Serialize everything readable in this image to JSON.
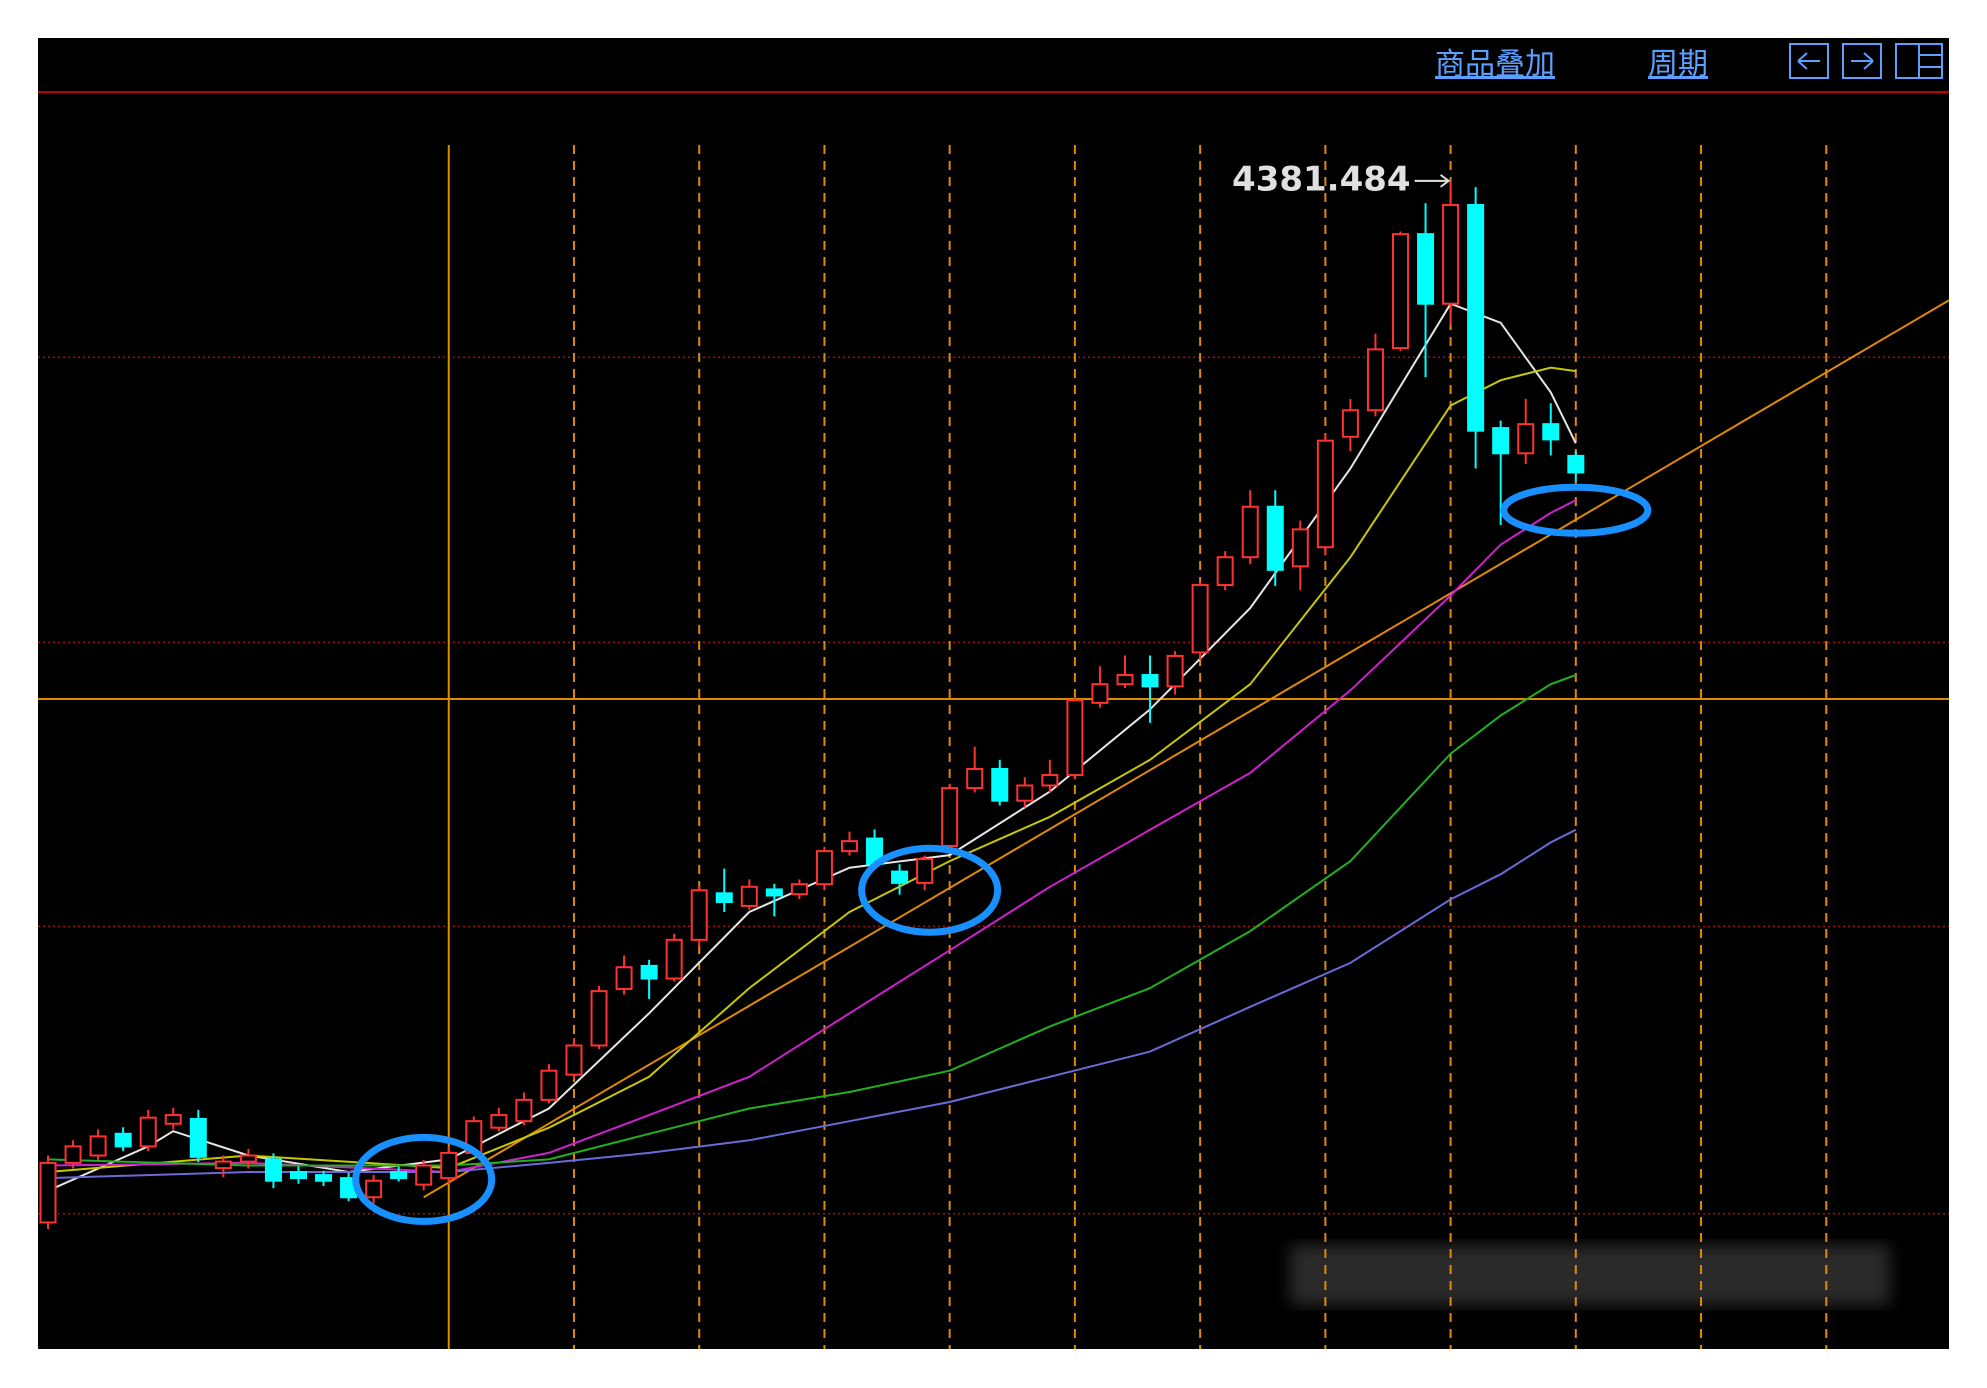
{
  "toolbar": {
    "buttons": [
      "商品叠加",
      "周期"
    ]
  },
  "chart_data": {
    "type": "candlestick",
    "xlim": [
      -0.4,
      75.9
    ],
    "ylim": [
      1695,
      4579
    ],
    "xticks": [
      21,
      26,
      31,
      36,
      41,
      46,
      51,
      56,
      61,
      66,
      71
    ],
    "yticks": [
      2006,
      2667,
      3320,
      3976
    ],
    "grid": true,
    "up_color": "#ff3232",
    "down_color": "#00ffff",
    "candles": [
      [
        1986,
        2123,
        1971,
        2140
      ],
      [
        2123,
        2161,
        2110,
        2175
      ],
      [
        2140,
        2184,
        2130,
        2200
      ],
      [
        2190,
        2161,
        2150,
        2205
      ],
      [
        2161,
        2227,
        2150,
        2245
      ],
      [
        2213,
        2233,
        2200,
        2250
      ],
      [
        2224,
        2137,
        2125,
        2245
      ],
      [
        2111,
        2126,
        2090,
        2140
      ],
      [
        2126,
        2140,
        2110,
        2155
      ],
      [
        2131,
        2082,
        2065,
        2145
      ],
      [
        2102,
        2088,
        2075,
        2115
      ],
      [
        2095,
        2082,
        2070,
        2105
      ],
      [
        2088,
        2044,
        2035,
        2100
      ],
      [
        2044,
        2082,
        2030,
        2095
      ],
      [
        2102,
        2088,
        2080,
        2115
      ],
      [
        2073,
        2117,
        2060,
        2130
      ],
      [
        2088,
        2146,
        2075,
        2160
      ],
      [
        2146,
        2219,
        2140,
        2230
      ],
      [
        2204,
        2233,
        2195,
        2250
      ],
      [
        2219,
        2268,
        2210,
        2285
      ],
      [
        2268,
        2335,
        2260,
        2350
      ],
      [
        2326,
        2393,
        2315,
        2410
      ],
      [
        2393,
        2518,
        2385,
        2530
      ],
      [
        2523,
        2573,
        2510,
        2600
      ],
      [
        2576,
        2547,
        2500,
        2590
      ],
      [
        2547,
        2636,
        2540,
        2650
      ],
      [
        2636,
        2750,
        2620,
        2760
      ],
      [
        2743,
        2723,
        2700,
        2800
      ],
      [
        2714,
        2758,
        2705,
        2775
      ],
      [
        2752,
        2738,
        2690,
        2765
      ],
      [
        2741,
        2764,
        2730,
        2775
      ],
      [
        2764,
        2840,
        2750,
        2850
      ],
      [
        2840,
        2863,
        2830,
        2885
      ],
      [
        2869,
        2811,
        2800,
        2890
      ],
      [
        2793,
        2767,
        2740,
        2810
      ],
      [
        2767,
        2822,
        2750,
        2830
      ],
      [
        2852,
        2985,
        2840,
        2995
      ],
      [
        2985,
        3029,
        2975,
        3080
      ],
      [
        3029,
        2956,
        2945,
        3050
      ],
      [
        2956,
        2991,
        2940,
        3010
      ],
      [
        2991,
        3015,
        2975,
        3050
      ],
      [
        3015,
        3187,
        3005,
        3195
      ],
      [
        3181,
        3224,
        3170,
        3265
      ],
      [
        3224,
        3245,
        3215,
        3290
      ],
      [
        3245,
        3219,
        3135,
        3290
      ],
      [
        3219,
        3289,
        3200,
        3300
      ],
      [
        3297,
        3452,
        3280,
        3460
      ],
      [
        3452,
        3516,
        3440,
        3530
      ],
      [
        3516,
        3632,
        3500,
        3670
      ],
      [
        3632,
        3487,
        3450,
        3670
      ],
      [
        3495,
        3580,
        3440,
        3600
      ],
      [
        3539,
        3784,
        3520,
        3800
      ],
      [
        3793,
        3854,
        3760,
        3880
      ],
      [
        3854,
        3994,
        3840,
        4030
      ],
      [
        3997,
        4259,
        3990,
        4265
      ],
      [
        4259,
        4099,
        3930,
        4330
      ],
      [
        4099,
        4326,
        4050,
        4381.484
      ],
      [
        4326,
        3807,
        3720,
        4367
      ],
      [
        3813,
        3755,
        3590,
        3830
      ],
      [
        3755,
        3822,
        3730,
        3880
      ],
      [
        3822,
        3787,
        3750,
        3870
      ],
      [
        3749,
        3711,
        3690,
        3760
      ]
    ],
    "series": [
      {
        "color": "#e6e6e6",
        "x": [
          0,
          4,
          5,
          8,
          12,
          16,
          20,
          24,
          28,
          32,
          36,
          40,
          44,
          48,
          52,
          56,
          58,
          60,
          61
        ],
        "values": [
          2059,
          2161,
          2196,
          2140,
          2102,
          2131,
          2248,
          2467,
          2700,
          2802,
          2831,
          2977,
          3166,
          3399,
          3720,
          4099,
          4055,
          3895,
          3778
        ]
      },
      {
        "color": "#c8c800",
        "x": [
          0,
          8,
          16,
          20,
          24,
          28,
          32,
          36,
          40,
          44,
          48,
          52,
          56,
          58,
          60,
          61
        ],
        "values": [
          2102,
          2140,
          2111,
          2204,
          2321,
          2525,
          2700,
          2817,
          2919,
          3050,
          3224,
          3516,
          3865,
          3923,
          3952,
          3944
        ]
      },
      {
        "color": "#d020d0",
        "x": [
          0,
          8,
          16,
          20,
          24,
          28,
          32,
          36,
          40,
          44,
          48,
          52,
          56,
          58,
          60,
          61
        ],
        "values": [
          2117,
          2123,
          2102,
          2146,
          2233,
          2321,
          2467,
          2612,
          2758,
          2889,
          3020,
          3210,
          3428,
          3545,
          3618,
          3647
        ]
      },
      {
        "color": "#20b020",
        "x": [
          0,
          8,
          16,
          20,
          24,
          28,
          32,
          36,
          40,
          44,
          48,
          52,
          56,
          58,
          60,
          61
        ],
        "values": [
          2131,
          2117,
          2117,
          2131,
          2190,
          2248,
          2286,
          2335,
          2437,
          2525,
          2656,
          2817,
          3064,
          3152,
          3224,
          3245
        ]
      },
      {
        "color": "#6a6ad8",
        "x": [
          0,
          8,
          16,
          20,
          24,
          28,
          32,
          36,
          40,
          44,
          48,
          52,
          56,
          58,
          60,
          61
        ],
        "values": [
          2088,
          2102,
          2102,
          2123,
          2146,
          2175,
          2219,
          2263,
          2321,
          2379,
          2482,
          2583,
          2729,
          2787,
          2860,
          2889
        ]
      }
    ],
    "trendline": {
      "color": "#e08a00",
      "x": [
        15,
        75.9
      ],
      "values": [
        2044,
        4107
      ]
    },
    "crosshair": {
      "color": "#e08a00",
      "x": 16,
      "y": 3190
    },
    "highlights": {
      "color": "#1890ff",
      "points": [
        {
          "x": 15,
          "y": 2085
        },
        {
          "x": 35.2,
          "y": 2750
        },
        {
          "x": 61,
          "y": 3624
        }
      ]
    },
    "annotation_index": 56
  }
}
